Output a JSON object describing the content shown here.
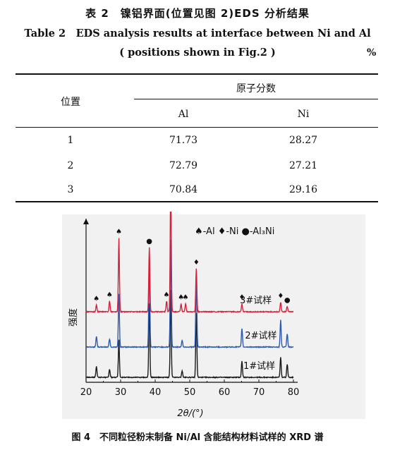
{
  "table": {
    "title_cn": "表 2　镍铝界面(位置见图 2)EDS 分析结果",
    "title_en_line1": "Table 2　EDS analysis results at interface between Ni and Al",
    "title_en_line2": "( positions shown in Fig.2 )",
    "unit": "%",
    "header_position": "位置",
    "header_group": "原子分数",
    "columns": [
      "Al",
      "Ni"
    ],
    "rows": [
      {
        "position": "1",
        "al": "71.73",
        "ni": "28.27"
      },
      {
        "position": "2",
        "al": "72.79",
        "ni": "27.21"
      },
      {
        "position": "3",
        "al": "70.84",
        "ni": "29.16"
      }
    ]
  },
  "figure": {
    "caption": "图 4　不同粒径粉末制备 Ni/Al 含能结构材料试样的 XRD 谱",
    "chart_data": {
      "type": "line",
      "xlabel": "2θ/(°)",
      "ylabel": "强度",
      "xlim": [
        20,
        80
      ],
      "xticks": [
        20,
        30,
        40,
        50,
        60,
        70,
        80
      ],
      "legend": [
        {
          "symbol": "♠",
          "label": "Al"
        },
        {
          "symbol": "♦",
          "label": "Ni"
        },
        {
          "symbol": "●",
          "label": "Al₃Ni"
        }
      ],
      "series": [
        {
          "name": "1#试样",
          "color": "#1a1a1a",
          "peaks": [
            [
              23,
              0.08
            ],
            [
              26.8,
              0.06
            ],
            [
              29.5,
              0.28
            ],
            [
              38.3,
              0.55
            ],
            [
              44.5,
              0.65
            ],
            [
              47.8,
              0.05
            ],
            [
              51.9,
              0.48
            ],
            [
              65.1,
              0.12
            ],
            [
              76.3,
              0.15
            ],
            [
              78.2,
              0.1
            ]
          ]
        },
        {
          "name": "2#试样",
          "color": "#2c5bb0",
          "peaks": [
            [
              23,
              0.08
            ],
            [
              26.8,
              0.06
            ],
            [
              29.5,
              0.4
            ],
            [
              38.3,
              0.65
            ],
            [
              44.5,
              0.8
            ],
            [
              47.8,
              0.05
            ],
            [
              51.9,
              0.52
            ],
            [
              65.1,
              0.14
            ],
            [
              76.3,
              0.2
            ],
            [
              78.2,
              0.1
            ]
          ]
        },
        {
          "name": "3#试样",
          "color": "#d8203a",
          "peaks": [
            [
              23,
              0.05
            ],
            [
              26.8,
              0.08
            ],
            [
              29.5,
              0.55
            ],
            [
              38.3,
              0.48
            ],
            [
              43.3,
              0.08
            ],
            [
              44.5,
              1.0
            ],
            [
              47.5,
              0.06
            ],
            [
              48.8,
              0.06
            ],
            [
              51.9,
              0.32
            ],
            [
              65.1,
              0.06
            ],
            [
              76.3,
              0.07
            ],
            [
              78.2,
              0.04
            ]
          ]
        }
      ],
      "markers_top": [
        {
          "x": 23,
          "symbol": "♠"
        },
        {
          "x": 26.8,
          "symbol": "♠"
        },
        {
          "x": 29.5,
          "symbol": "♠"
        },
        {
          "x": 38.3,
          "symbol": "●"
        },
        {
          "x": 43.3,
          "symbol": "♠"
        },
        {
          "x": 44.5,
          "symbol": "♦"
        },
        {
          "x": 47.5,
          "symbol": "♠"
        },
        {
          "x": 48.8,
          "symbol": "♠"
        },
        {
          "x": 51.9,
          "symbol": "♦"
        },
        {
          "x": 65.1,
          "symbol": "♦"
        },
        {
          "x": 76.3,
          "symbol": "♦"
        },
        {
          "x": 78.2,
          "symbol": "●"
        }
      ]
    }
  }
}
